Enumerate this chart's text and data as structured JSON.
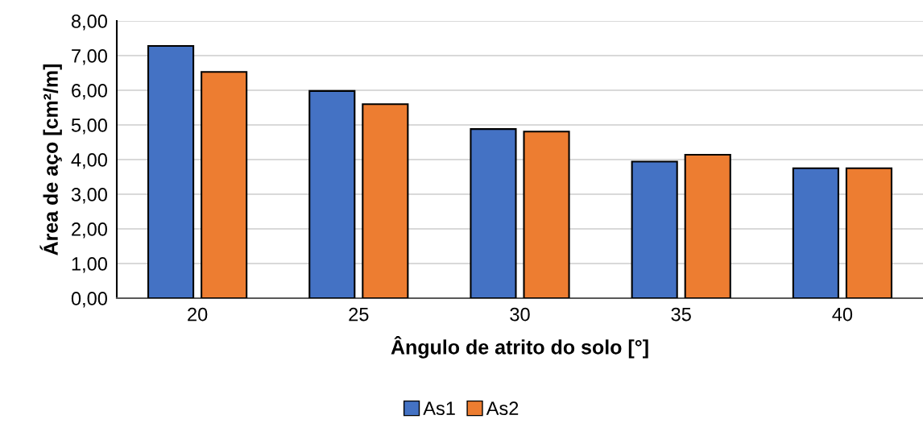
{
  "chart_data": {
    "type": "bar",
    "xlabel": "Ângulo de atrito do solo [°]",
    "ylabel": "Área de aço [cm²/m]",
    "categories": [
      "20",
      "25",
      "30",
      "35",
      "40"
    ],
    "series": [
      {
        "name": "As1",
        "color": "#4472c4",
        "values": [
          7.28,
          5.98,
          4.88,
          3.94,
          3.75
        ]
      },
      {
        "name": "As2",
        "color": "#ed7d31",
        "values": [
          6.53,
          5.6,
          4.81,
          4.14,
          3.75
        ]
      }
    ],
    "ylim": [
      0,
      8
    ],
    "yticks": [
      {
        "value": 0,
        "label": "0,00"
      },
      {
        "value": 1,
        "label": "1,00"
      },
      {
        "value": 2,
        "label": "2,00"
      },
      {
        "value": 3,
        "label": "3,00"
      },
      {
        "value": 4,
        "label": "4,00"
      },
      {
        "value": 5,
        "label": "5,00"
      },
      {
        "value": 6,
        "label": "6,00"
      },
      {
        "value": 7,
        "label": "7,00"
      },
      {
        "value": 8,
        "label": "8,00"
      }
    ],
    "grid": "y",
    "legend": "bottom"
  }
}
